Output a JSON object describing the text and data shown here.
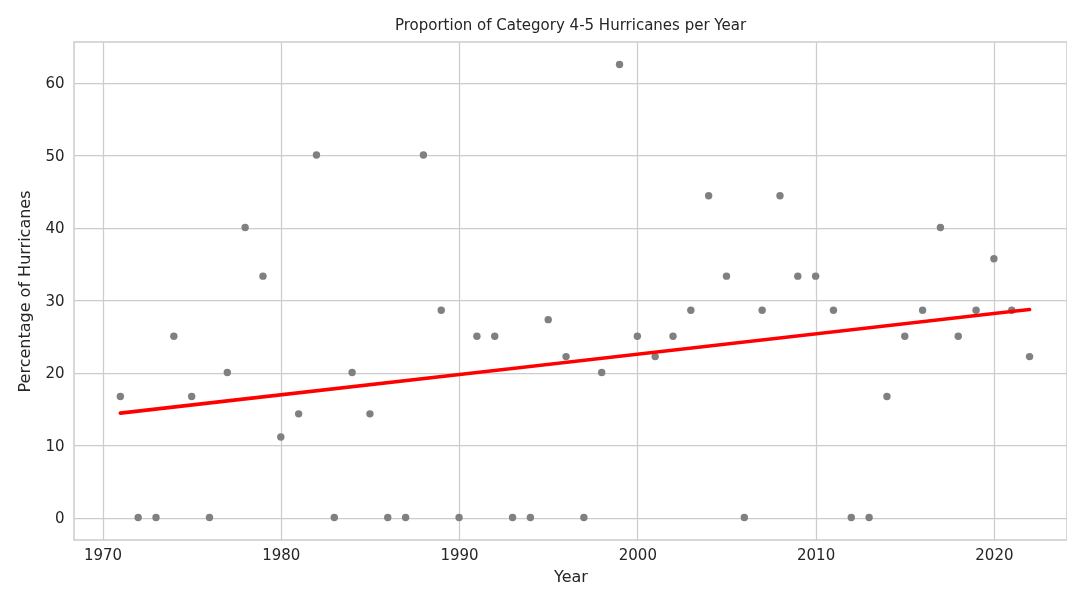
{
  "chart_data": {
    "type": "scatter",
    "title": "Proportion of Category 4-5 Hurricanes per Year",
    "xlabel": "Year",
    "ylabel": "Percentage of Hurricanes",
    "xlim": [
      1968.4,
      2024.1
    ],
    "ylim": [
      -3.1,
      65.6
    ],
    "xticks": [
      1970,
      1980,
      1990,
      2000,
      2010,
      2020
    ],
    "yticks": [
      0,
      10,
      20,
      30,
      40,
      50,
      60
    ],
    "grid": true,
    "x": [
      1971,
      1972,
      1973,
      1974,
      1975,
      1976,
      1977,
      1978,
      1979,
      1980,
      1981,
      1982,
      1983,
      1984,
      1985,
      1986,
      1987,
      1988,
      1989,
      1990,
      1991,
      1992,
      1993,
      1994,
      1995,
      1996,
      1997,
      1998,
      1999,
      2000,
      2001,
      2002,
      2003,
      2004,
      2005,
      2006,
      2007,
      2008,
      2009,
      2010,
      2011,
      2012,
      2013,
      2014,
      2015,
      2016,
      2017,
      2018,
      2019,
      2020,
      2021,
      2022
    ],
    "series": [
      {
        "color": "#808080",
        "marker": "circle",
        "values": [
          16.7,
          0,
          0,
          25,
          16.7,
          0,
          20,
          40,
          33.3,
          11.1,
          14.3,
          50,
          0,
          20,
          14.3,
          0,
          0,
          50,
          28.6,
          0,
          25,
          25,
          0,
          0,
          27.3,
          22.2,
          0,
          20,
          62.5,
          25,
          22.2,
          25,
          28.6,
          44.4,
          33.3,
          0,
          28.6,
          44.4,
          33.3,
          33.3,
          28.6,
          0,
          0,
          16.7,
          25,
          28.6,
          40,
          25,
          28.6,
          35.7,
          28.6,
          22.2
        ]
      },
      {
        "type": "line",
        "color": "#ff0000",
        "marker": "none",
        "line_style": "solid",
        "x": [
          1971,
          2022
        ],
        "values": [
          14.4,
          28.7
        ]
      }
    ]
  }
}
